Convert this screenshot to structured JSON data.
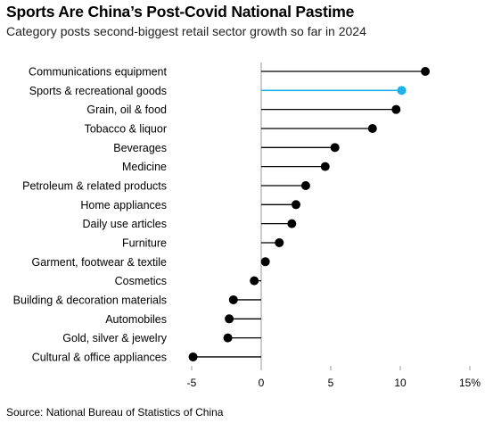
{
  "chart_data": {
    "type": "lollipop",
    "title": "Sports Are China’s Post-Covid National Pastime",
    "subtitle": "Category posts second-biggest retail sector growth so far in 2024",
    "source": "Source: National Bureau of Statistics of China",
    "categories": [
      "Communications equipment",
      "Sports & recreational goods",
      "Grain, oil & food",
      "Tobacco & liquor",
      "Beverages",
      "Medicine",
      "Petroleum & related products",
      "Home appliances",
      "Daily use articles",
      "Furniture",
      "Garment, footwear & textile",
      "Cosmetics",
      "Building & decoration materials",
      "Automobiles",
      "Gold, silver & jewelry",
      "Cultural & office appliances"
    ],
    "values": [
      11.8,
      10.1,
      9.7,
      8.0,
      5.3,
      4.6,
      3.2,
      2.5,
      2.2,
      1.3,
      0.3,
      -0.5,
      -2.0,
      -2.3,
      -2.4,
      -4.9
    ],
    "highlight": "Sports & recreational goods",
    "xlim": [
      -5,
      15
    ],
    "xticks": [
      -5,
      0,
      5,
      10,
      15
    ],
    "xtick_labels": [
      "-5",
      "0",
      "5",
      "10",
      "15%"
    ],
    "xlabel": "",
    "ylabel": "",
    "grid": false,
    "colors": {
      "default": "#000000",
      "highlight": "#1fb2e8",
      "zero_line": "#999999",
      "tick": "#999999"
    }
  }
}
